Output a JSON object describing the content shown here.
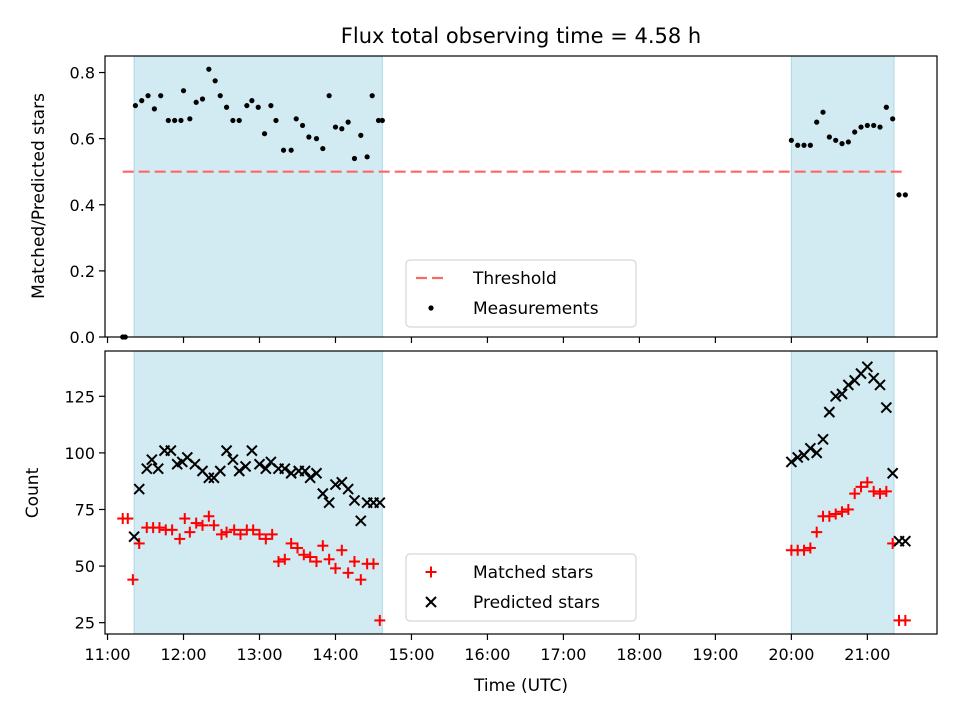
{
  "title": "Flux total observing time = 4.58 h",
  "colors": {
    "band": "#add8e6",
    "threshold": "#ff6666",
    "measurement": "#000000",
    "matched": "#ff0000",
    "predicted": "#000000"
  },
  "chart_data": [
    {
      "type": "scatter",
      "panel": "top",
      "ylabel": "Matched/Predicted stars",
      "xlim": [
        "10:58",
        "21:55"
      ],
      "ylim": [
        0,
        0.85
      ],
      "yticks": [
        0.0,
        0.2,
        0.4,
        0.6,
        0.8
      ],
      "ytick_labels": [
        "0.0",
        "0.2",
        "0.4",
        "0.6",
        "0.8"
      ],
      "bands": [
        [
          "11:21",
          "14:37"
        ],
        [
          "20:00",
          "21:21"
        ]
      ],
      "threshold": {
        "name": "Threshold",
        "y": 0.5,
        "x": [
          "11:12",
          "21:30"
        ]
      },
      "legend": {
        "position": "lower-center",
        "entries": [
          "Threshold",
          "Measurements"
        ]
      },
      "series": [
        {
          "name": "Measurements",
          "marker": "dot",
          "x": [
            "11:12",
            "11:14",
            "11:22",
            "11:27",
            "11:32",
            "11:37",
            "11:42",
            "11:48",
            "11:53",
            "11:58",
            "12:00",
            "12:05",
            "12:10",
            "12:15",
            "12:20",
            "12:25",
            "12:29",
            "12:34",
            "12:39",
            "12:44",
            "12:50",
            "12:54",
            "12:59",
            "13:04",
            "13:09",
            "13:13",
            "13:19",
            "13:25",
            "13:29",
            "13:34",
            "13:39",
            "13:45",
            "13:50",
            "13:55",
            "14:00",
            "14:05",
            "14:10",
            "14:15",
            "14:20",
            "14:25",
            "14:29",
            "14:34",
            "14:37",
            "20:00",
            "20:05",
            "20:10",
            "20:15",
            "20:20",
            "20:25",
            "20:30",
            "20:35",
            "20:40",
            "20:45",
            "20:50",
            "20:55",
            "21:00",
            "21:05",
            "21:10",
            "21:15",
            "21:20",
            "21:25",
            "21:30"
          ],
          "y": [
            0.0,
            0.0,
            0.7,
            0.715,
            0.73,
            0.69,
            0.73,
            0.655,
            0.655,
            0.655,
            0.745,
            0.66,
            0.71,
            0.72,
            0.81,
            0.775,
            0.73,
            0.695,
            0.655,
            0.655,
            0.7,
            0.715,
            0.695,
            0.615,
            0.7,
            0.655,
            0.565,
            0.565,
            0.66,
            0.64,
            0.605,
            0.6,
            0.57,
            0.73,
            0.635,
            0.63,
            0.65,
            0.54,
            0.61,
            0.545,
            0.73,
            0.655,
            0.655,
            0.595,
            0.58,
            0.58,
            0.58,
            0.65,
            0.68,
            0.605,
            0.595,
            0.585,
            0.59,
            0.62,
            0.635,
            0.64,
            0.64,
            0.635,
            0.695,
            0.66,
            0.43,
            0.43
          ]
        }
      ]
    },
    {
      "type": "scatter",
      "panel": "bottom",
      "xlabel": "Time (UTC)",
      "ylabel": "Count",
      "xlim": [
        "10:58",
        "21:55"
      ],
      "ylim": [
        20,
        145
      ],
      "xticks": [
        "11:00",
        "12:00",
        "13:00",
        "14:00",
        "15:00",
        "16:00",
        "17:00",
        "18:00",
        "19:00",
        "20:00",
        "21:00"
      ],
      "yticks": [
        25,
        50,
        75,
        100,
        125
      ],
      "ytick_labels": [
        "25",
        "50",
        "75",
        "100",
        "125"
      ],
      "bands": [
        [
          "11:21",
          "14:37"
        ],
        [
          "20:00",
          "21:21"
        ]
      ],
      "legend": {
        "position": "lower-center",
        "entries": [
          "Matched stars",
          "Predicted stars"
        ]
      },
      "series": [
        {
          "name": "Matched stars",
          "marker": "plus",
          "x": [
            "11:12",
            "11:16",
            "11:20",
            "11:25",
            "11:31",
            "11:36",
            "11:41",
            "11:46",
            "11:51",
            "11:57",
            "12:01",
            "12:05",
            "12:10",
            "12:15",
            "12:20",
            "12:24",
            "12:30",
            "12:34",
            "12:40",
            "12:45",
            "12:50",
            "12:55",
            "13:00",
            "13:05",
            "13:10",
            "13:15",
            "13:20",
            "13:25",
            "13:30",
            "13:35",
            "13:40",
            "13:45",
            "13:50",
            "13:55",
            "14:00",
            "14:05",
            "14:10",
            "14:15",
            "14:20",
            "14:25",
            "14:30",
            "14:35",
            "20:00",
            "20:05",
            "20:10",
            "20:15",
            "20:20",
            "20:25",
            "20:30",
            "20:35",
            "20:40",
            "20:45",
            "20:50",
            "20:55",
            "21:00",
            "21:05",
            "21:10",
            "21:15",
            "21:20",
            "21:25",
            "21:30"
          ],
          "y": [
            71,
            71,
            44,
            60,
            67,
            67,
            67,
            66,
            66,
            62,
            71,
            65,
            69,
            68,
            72,
            68,
            64,
            65,
            66,
            64,
            66,
            66,
            64,
            62,
            64,
            52,
            53,
            60,
            58,
            55,
            54,
            52,
            59,
            53,
            49,
            57,
            47,
            52,
            44,
            51,
            51,
            26,
            57,
            57,
            57,
            58,
            65,
            72,
            72,
            73,
            74,
            75,
            82,
            85,
            87,
            83,
            82,
            83,
            60,
            26,
            26
          ],
          "note": ""
        },
        {
          "name": "Predicted stars",
          "marker": "x",
          "x": [
            "11:21",
            "11:25",
            "11:31",
            "11:35",
            "11:40",
            "11:45",
            "11:50",
            "11:55",
            "11:59",
            "12:03",
            "12:09",
            "12:15",
            "12:20",
            "12:24",
            "12:29",
            "12:34",
            "12:39",
            "12:44",
            "12:49",
            "12:54",
            "13:00",
            "13:05",
            "13:09",
            "13:15",
            "13:20",
            "13:25",
            "13:31",
            "13:36",
            "13:40",
            "13:45",
            "13:50",
            "13:55",
            "14:00",
            "14:05",
            "14:10",
            "14:15",
            "14:20",
            "14:25",
            "14:30",
            "14:35",
            "20:00",
            "20:05",
            "20:10",
            "20:15",
            "20:20",
            "20:25",
            "20:30",
            "20:35",
            "20:40",
            "20:45",
            "20:50",
            "20:55",
            "21:00",
            "21:05",
            "21:10",
            "21:15",
            "21:20",
            "21:25",
            "21:30"
          ],
          "y": [
            63,
            84,
            93,
            97,
            93,
            101,
            101,
            95,
            96,
            98,
            95,
            92,
            89,
            89,
            92,
            101,
            97,
            92,
            94,
            101,
            95,
            93,
            96,
            93,
            93,
            91,
            92,
            92,
            89,
            91,
            82,
            78,
            86,
            87,
            84,
            79,
            70,
            78,
            78,
            78,
            96,
            98,
            99,
            102,
            100,
            106,
            118,
            125,
            126,
            130,
            132,
            135,
            138,
            133,
            130,
            120,
            91,
            61,
            61
          ]
        }
      ]
    }
  ]
}
